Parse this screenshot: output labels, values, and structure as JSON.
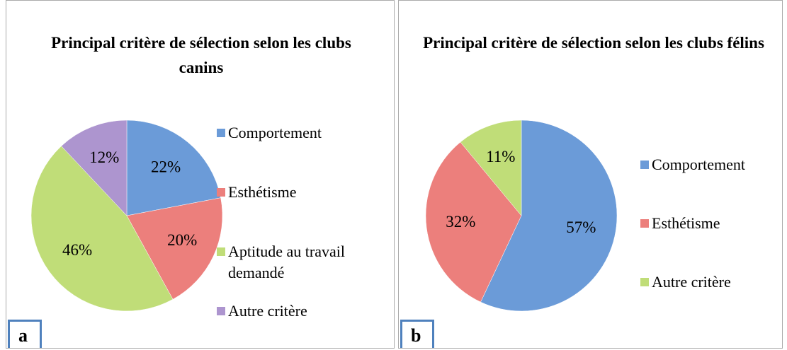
{
  "chart_data": [
    {
      "type": "pie",
      "title": "Principal critère de sélection selon les clubs canins",
      "categories": [
        "Comportement",
        "Esthétisme",
        "Aptitude au travail demandé",
        "Autre critère"
      ],
      "values": [
        22,
        20,
        46,
        12
      ],
      "value_labels": [
        "22%",
        "20%",
        "46%",
        "12%"
      ],
      "colors": [
        "#6b9bd8",
        "#ec7f7c",
        "#c0dd78",
        "#ad95cf"
      ],
      "panel_label": "a"
    },
    {
      "type": "pie",
      "title": "Principal critère de sélection selon les clubs félins",
      "categories": [
        "Comportement",
        "Esthétisme",
        "Autre critère"
      ],
      "values": [
        57,
        32,
        11
      ],
      "value_labels": [
        "57%",
        "32%",
        "11%"
      ],
      "colors": [
        "#6b9bd8",
        "#ec7f7c",
        "#c0dd78"
      ],
      "panel_label": "b"
    }
  ]
}
